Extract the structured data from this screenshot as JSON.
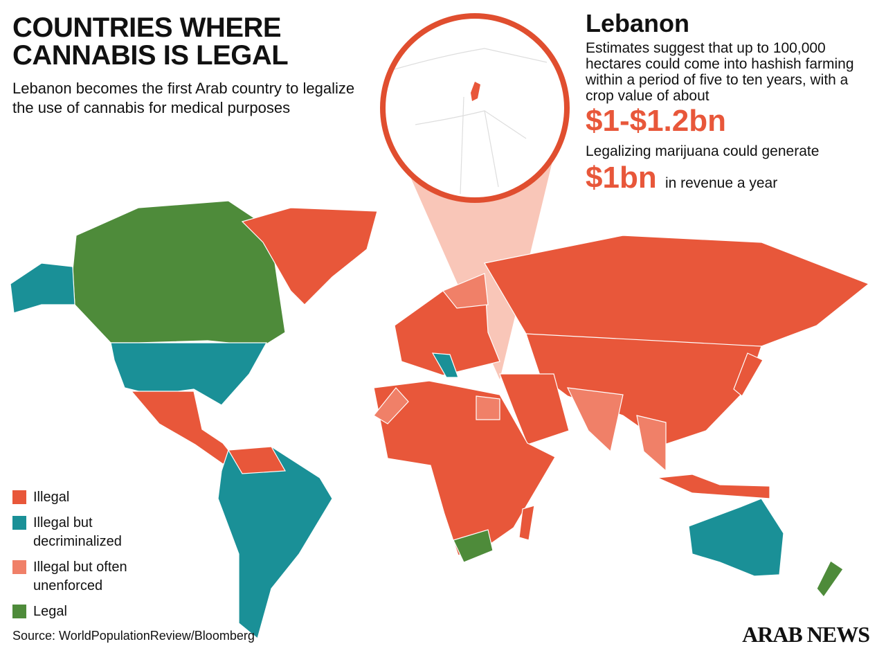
{
  "header": {
    "title": "Countries where cannabis is legal",
    "subtitle": "Lebanon becomes the first Arab country to legalize the use of cannabis for medical purposes"
  },
  "panel": {
    "country": "Lebanon",
    "text": "Estimates suggest that up to 100,000 hectares could come into hashish farming within a period of five to ten years, with a crop value of about",
    "figure_1": "$1-$1.2bn",
    "text_2": "Legalizing marijuana could generate",
    "figure_2": "$1bn",
    "figure_2_note": "in revenue a year"
  },
  "legend": [
    {
      "label": "Illegal",
      "color": "#e8573a"
    },
    {
      "label": "Illegal but decriminalized",
      "color": "#1a9097"
    },
    {
      "label": "Illegal but often unenforced",
      "color": "#f08068"
    },
    {
      "label": "Legal",
      "color": "#4e8b3a"
    }
  ],
  "source": "Source: WorldPopulationReview/Bloomberg",
  "brand": "ARAB NEWS"
}
